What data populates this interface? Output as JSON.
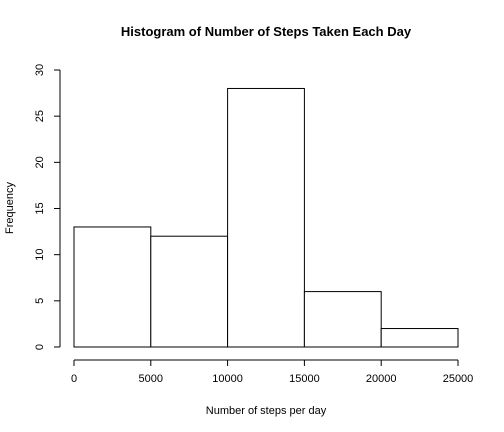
{
  "chart_data": {
    "type": "bar",
    "title": "Histogram of Number of Steps Taken Each Day",
    "xlabel": "Number of steps per day",
    "ylabel": "Frequency",
    "bins": [
      {
        "start": 0,
        "end": 5000,
        "value": 13
      },
      {
        "start": 5000,
        "end": 10000,
        "value": 12
      },
      {
        "start": 10000,
        "end": 15000,
        "value": 28
      },
      {
        "start": 15000,
        "end": 20000,
        "value": 6
      },
      {
        "start": 20000,
        "end": 25000,
        "value": 2
      }
    ],
    "xlim": [
      0,
      25000
    ],
    "ylim": [
      0,
      30
    ],
    "xticks": [
      0,
      5000,
      10000,
      15000,
      20000,
      25000
    ],
    "yticks": [
      0,
      5,
      10,
      15,
      20,
      25,
      30
    ],
    "grid": false,
    "bar_fill": "#ffffff",
    "bar_stroke": "#000000"
  }
}
